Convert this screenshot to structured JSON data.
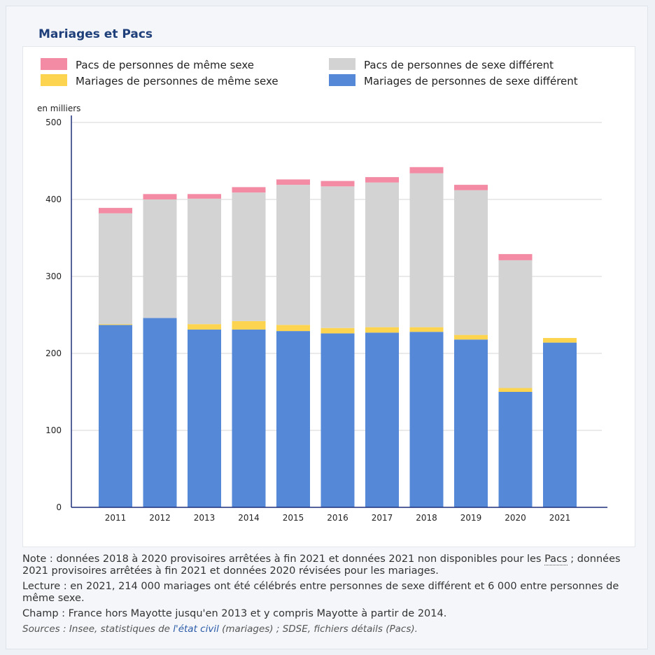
{
  "header": {
    "title": "Mariages et Pacs"
  },
  "legend": [
    {
      "label": "Pacs de personnes de même sexe",
      "color": "#f28ba3"
    },
    {
      "label": "Pacs de personnes de sexe différent",
      "color": "#d3d3d3"
    },
    {
      "label": "Mariages de personnes de même sexe",
      "color": "#fdd44f"
    },
    {
      "label": "Mariages de personnes de sexe différent",
      "color": "#5588d6"
    }
  ],
  "chart_data": {
    "type": "bar",
    "stacked": true,
    "title": "Mariages et Pacs",
    "ylabel": "en milliers",
    "xlabel": "",
    "ylim": [
      0,
      500
    ],
    "yticks": [
      0,
      100,
      200,
      300,
      400,
      500
    ],
    "grid": true,
    "legend_position": "top",
    "categories": [
      "2011",
      "2012",
      "2013",
      "2014",
      "2015",
      "2016",
      "2017",
      "2018",
      "2019",
      "2020",
      "2021"
    ],
    "series": [
      {
        "name": "Mariages de personnes de sexe différent",
        "color": "#5588d6",
        "values": [
          237,
          246,
          231,
          231,
          229,
          226,
          227,
          228,
          218,
          150,
          214
        ]
      },
      {
        "name": "Mariages de personnes de même sexe",
        "color": "#fdd44f",
        "values": [
          1,
          0,
          7,
          11,
          8,
          7,
          7,
          6,
          6,
          5,
          6
        ]
      },
      {
        "name": "Pacs de personnes de sexe différent",
        "color": "#d3d3d3",
        "values": [
          144,
          154,
          163,
          167,
          182,
          184,
          188,
          200,
          188,
          166,
          0
        ]
      },
      {
        "name": "Pacs de personnes de même sexe",
        "color": "#f28ba3",
        "values": [
          7,
          7,
          6,
          7,
          7,
          7,
          7,
          8,
          7,
          8,
          0
        ]
      }
    ]
  },
  "notes": {
    "note_prefix": "Note : données 2018 à 2020 provisoires arrêtées à fin 2021 et données 2021 non disponibles pour les ",
    "note_term": "Pacs",
    "note_suffix": " ; données 2021 provisoires arrêtées à fin 2021 et données 2020 révisées pour les mariages.",
    "lecture": "Lecture : en 2021, 214 000 mariages ont été célébrés entre personnes de sexe différent et 6 000 entre personnes de même sexe.",
    "champ": "Champ : France hors Mayotte jusqu'en 2013 et y compris Mayotte à partir de 2014.",
    "sources_prefix": "Sources : Insee, statistiques de ",
    "sources_link": "l'état civil",
    "sources_suffix": " (mariages) ; SDSE, fichiers détails (Pacs)."
  }
}
